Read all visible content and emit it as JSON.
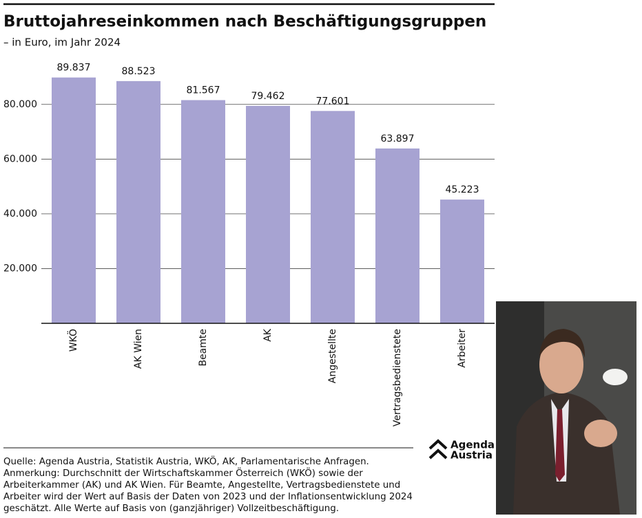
{
  "chart_data": {
    "type": "bar",
    "title": "Bruttojahreseinkommen nach Beschäftigungsgruppen",
    "subtitle": "– in Euro, im Jahr 2024",
    "categories": [
      "WKÖ",
      "AK Wien",
      "Beamte",
      "AK",
      "Angestellte",
      "Vertragsbedienstete",
      "Arbeiter"
    ],
    "values": [
      89837,
      88523,
      81567,
      79462,
      77601,
      63897,
      45223
    ],
    "value_labels": [
      "89.837",
      "88.523",
      "81.567",
      "79.462",
      "77.601",
      "63.897",
      "45.223"
    ],
    "color": "#a7a3d2",
    "ylim": [
      0,
      90000
    ],
    "yticks": [
      {
        "value": 20000,
        "label": "20.000"
      },
      {
        "value": 40000,
        "label": "40.000"
      },
      {
        "value": 60000,
        "label": "60.000"
      },
      {
        "value": 80000,
        "label": "80.000"
      }
    ],
    "grid": true
  },
  "footer": {
    "source": "Quelle: Agenda Austria, Statistik Austria, WKÖ, AK, Parlamentarische Anfragen.",
    "note": "Anmerkung: Durchschnitt der Wirtschaftskammer Österreich (WKÖ) sowie der Arbeiterkammer (AK) und AK Wien. Für Beamte, Angestellte, Vertragsbedienstete und Arbeiter wird der Wert auf Basis der Daten von 2023 und der Inflationsentwicklung 2024 geschätzt. Alle Werte auf Basis von (ganzjähriger) Vollzeitbeschäftigung."
  },
  "logo": {
    "line1": "Agenda",
    "line2": "Austria"
  }
}
